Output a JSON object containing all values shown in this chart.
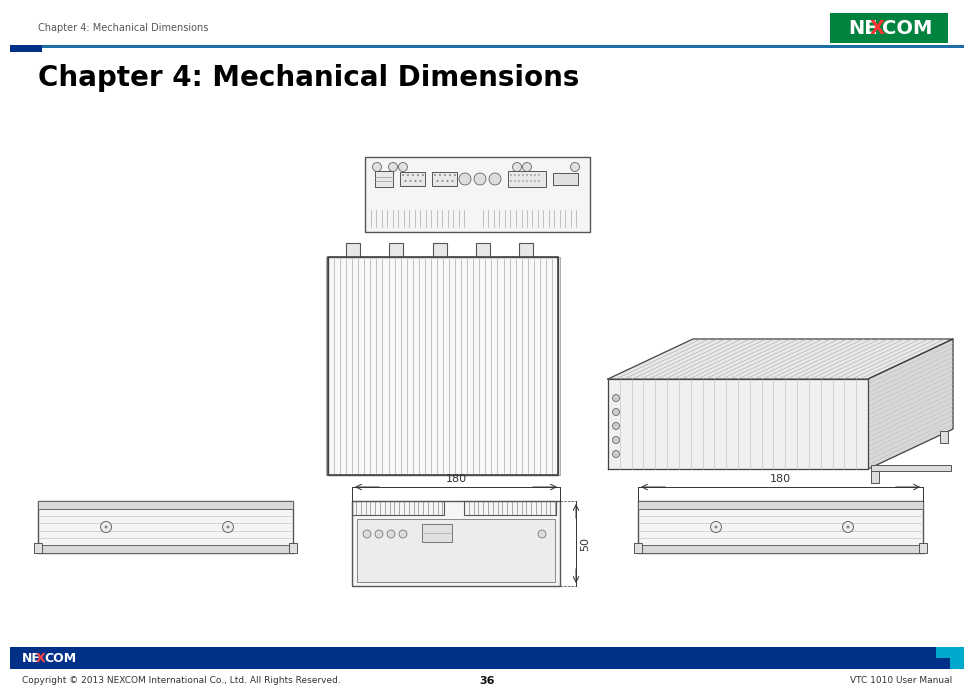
{
  "page_title": "Chapter 4: Mechanical Dimensions",
  "header_text": "Chapter 4: Mechanical Dimensions",
  "accent_color_blue": "#1c6ea4",
  "nexcom_bg": "#006633",
  "footer_text_left": "Copyright © 2013 NEXCOM International Co., Ltd. All Rights Reserved.",
  "footer_text_center": "36",
  "footer_text_right": "VTC 1010 User Manual",
  "footer_bar_color": "#003087",
  "dim_label_180_1": "180",
  "dim_label_180_2": "180",
  "dim_label_50": "50",
  "bg_color": "#ffffff",
  "title_color": "#000000",
  "title_fontsize": 20,
  "header_fontsize": 7,
  "footer_fontsize": 6.5,
  "drawing_line_color": "#444444",
  "blue_square_color": "#003087",
  "dark_blue": "#003087"
}
